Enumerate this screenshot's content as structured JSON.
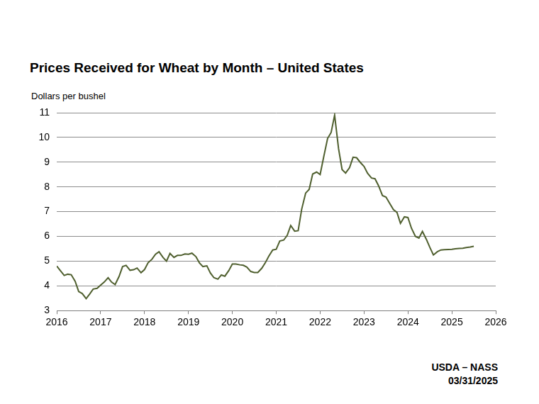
{
  "chart_data": {
    "type": "line",
    "title": "Prices Received for Wheat by Month – United States",
    "y_label": "Dollars per bushel",
    "annotations": [
      "USDA – NASS",
      "03/31/2025"
    ],
    "x": [
      2016,
      2016.08,
      2016.17,
      2016.25,
      2016.33,
      2016.42,
      2016.5,
      2016.58,
      2016.67,
      2016.75,
      2016.83,
      2016.92,
      2017,
      2017.08,
      2017.17,
      2017.25,
      2017.33,
      2017.42,
      2017.5,
      2017.58,
      2017.67,
      2017.75,
      2017.83,
      2017.92,
      2018,
      2018.08,
      2018.17,
      2018.25,
      2018.33,
      2018.42,
      2018.5,
      2018.58,
      2018.67,
      2018.75,
      2018.83,
      2018.92,
      2019,
      2019.08,
      2019.17,
      2019.25,
      2019.33,
      2019.42,
      2019.5,
      2019.58,
      2019.67,
      2019.75,
      2019.83,
      2019.92,
      2020,
      2020.08,
      2020.17,
      2020.25,
      2020.33,
      2020.42,
      2020.5,
      2020.58,
      2020.67,
      2020.75,
      2020.83,
      2020.92,
      2021,
      2021.08,
      2021.17,
      2021.25,
      2021.33,
      2021.42,
      2021.5,
      2021.58,
      2021.67,
      2021.75,
      2021.83,
      2021.92,
      2022,
      2022.08,
      2022.17,
      2022.25,
      2022.33,
      2022.42,
      2022.5,
      2022.58,
      2022.67,
      2022.75,
      2022.83,
      2022.92,
      2023,
      2023.08,
      2023.17,
      2023.25,
      2023.33,
      2023.42,
      2023.5,
      2023.58,
      2023.67,
      2023.75,
      2023.83,
      2023.92,
      2024,
      2024.08,
      2024.17,
      2024.25,
      2024.33,
      2024.42,
      2024.5,
      2024.58,
      2024.67,
      2024.75,
      2024.83,
      2024.92,
      2025,
      2025.08,
      2025.17,
      2025.25,
      2025.33,
      2025.42,
      2025.5
    ],
    "values": [
      4.8,
      4.62,
      4.42,
      4.47,
      4.45,
      4.18,
      3.77,
      3.69,
      3.48,
      3.67,
      3.87,
      3.9,
      4.03,
      4.15,
      4.33,
      4.15,
      4.05,
      4.38,
      4.78,
      4.83,
      4.63,
      4.65,
      4.72,
      4.53,
      4.66,
      4.93,
      5.08,
      5.28,
      5.38,
      5.15,
      5.0,
      5.31,
      5.15,
      5.23,
      5.23,
      5.29,
      5.28,
      5.32,
      5.18,
      4.93,
      4.78,
      4.81,
      4.52,
      4.33,
      4.27,
      4.44,
      4.39,
      4.62,
      4.88,
      4.88,
      4.85,
      4.83,
      4.76,
      4.58,
      4.54,
      4.54,
      4.71,
      4.93,
      5.2,
      5.45,
      5.48,
      5.81,
      5.85,
      6.04,
      6.44,
      6.21,
      6.23,
      7.1,
      7.75,
      7.9,
      8.52,
      8.6,
      8.5,
      9.2,
      9.96,
      10.2,
      10.9,
      9.54,
      8.7,
      8.56,
      8.78,
      9.2,
      9.18,
      8.98,
      8.83,
      8.55,
      8.36,
      8.33,
      8.05,
      7.65,
      7.59,
      7.35,
      7.08,
      6.97,
      6.53,
      6.79,
      6.76,
      6.33,
      6.0,
      5.93,
      6.2,
      5.88,
      5.55,
      5.25,
      5.38,
      5.45,
      5.46,
      5.47,
      5.48,
      5.5,
      5.51,
      5.52,
      5.55,
      5.57,
      5.6
    ],
    "color": "#4f5f2e",
    "xlim": [
      2016,
      2026
    ],
    "xticks": [
      2016,
      2017,
      2018,
      2019,
      2020,
      2021,
      2022,
      2023,
      2024,
      2025,
      2026
    ],
    "ylim": [
      3,
      11
    ],
    "yticks": [
      3,
      4,
      5,
      6,
      7,
      8,
      9,
      10,
      11
    ],
    "grid": true
  }
}
